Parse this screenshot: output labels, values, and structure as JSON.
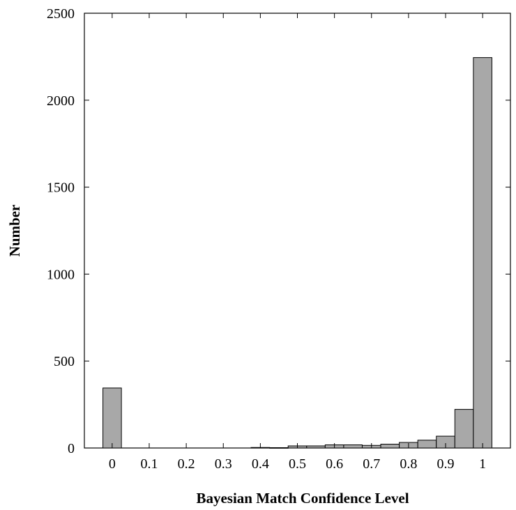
{
  "chart_data": {
    "type": "bar",
    "title": "",
    "xlabel": "Bayesian Match Confidence Level",
    "ylabel": "Number",
    "xlim": [
      -0.075,
      1.075
    ],
    "ylim": [
      0,
      2500
    ],
    "bin_width": 0.05,
    "x_ticks": [
      "0",
      "0.1",
      "0.2",
      "0.3",
      "0.4",
      "0.5",
      "0.6",
      "0.7",
      "0.8",
      "0.9",
      "1"
    ],
    "y_ticks": [
      "0",
      "500",
      "1000",
      "1500",
      "2000",
      "2500"
    ],
    "x": [
      0,
      0.05,
      0.1,
      0.15,
      0.2,
      0.25,
      0.3,
      0.35,
      0.4,
      0.45,
      0.5,
      0.55,
      0.6,
      0.65,
      0.7,
      0.75,
      0.8,
      0.85,
      0.9,
      0.95,
      1.0
    ],
    "values": [
      345,
      0,
      0,
      0,
      0,
      0,
      0,
      0,
      3,
      2,
      12,
      12,
      18,
      18,
      15,
      22,
      32,
      45,
      68,
      222,
      2245
    ],
    "grid": false,
    "legend": "none",
    "bar_color": "#a8a8a8",
    "edge_color": "#000000"
  }
}
